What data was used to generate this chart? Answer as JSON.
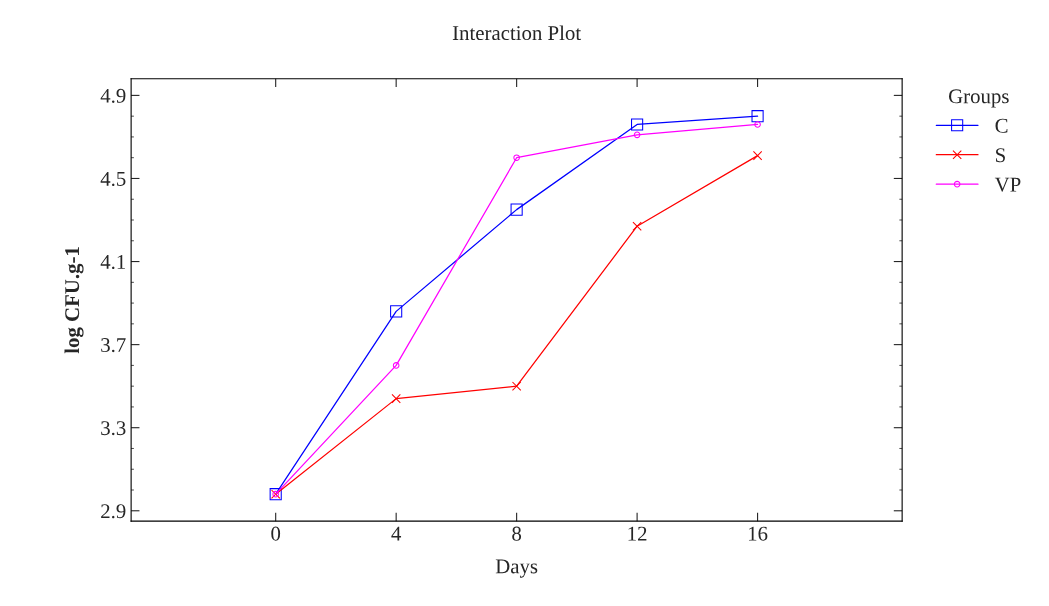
{
  "chart_data": {
    "type": "line",
    "title": "Interaction Plot",
    "xlabel": "Days",
    "ylabel": "log CFU.g-1",
    "legend_title": "Groups",
    "x": [
      0,
      4,
      8,
      12,
      16
    ],
    "series": [
      {
        "name": "C",
        "color": "#0000ff",
        "marker": "square",
        "values": [
          2.98,
          3.86,
          4.35,
          4.76,
          4.8
        ]
      },
      {
        "name": "S",
        "color": "#ff0000",
        "marker": "cross",
        "values": [
          2.98,
          3.44,
          3.5,
          4.27,
          4.61
        ]
      },
      {
        "name": "VP",
        "color": "#ff00ff",
        "marker": "circle",
        "values": [
          2.98,
          3.6,
          4.6,
          4.71,
          4.76
        ]
      }
    ],
    "xlim": [
      -4.8,
      20.8
    ],
    "xticks": [
      0,
      4,
      8,
      12,
      16
    ],
    "ylim": [
      2.85,
      4.98
    ],
    "yticks": [
      2.9,
      3.3,
      3.7,
      4.1,
      4.5,
      4.9
    ],
    "grid": false,
    "legend": "top right",
    "line_style": "solid"
  }
}
